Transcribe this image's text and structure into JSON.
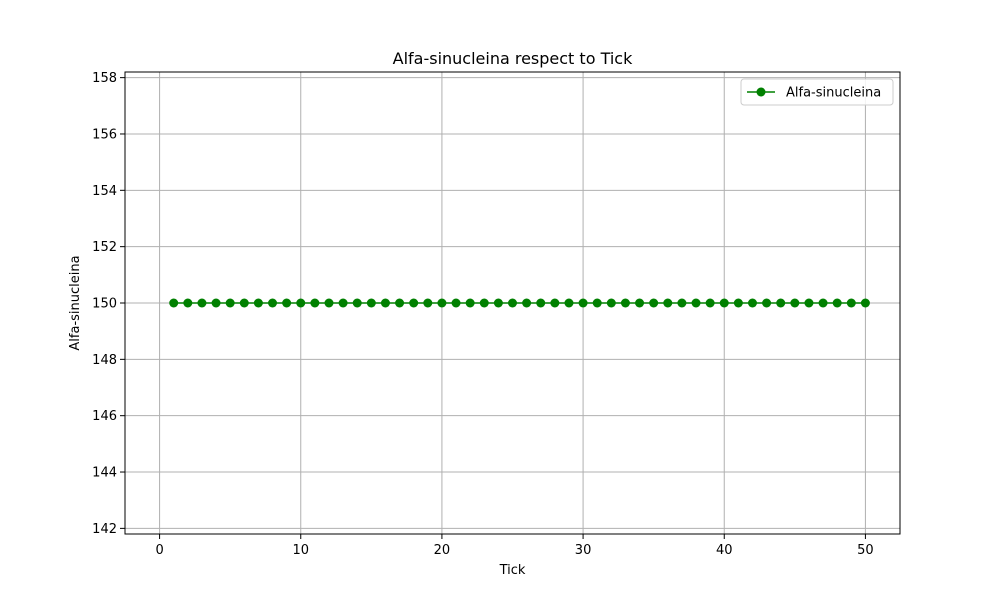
{
  "chart_data": {
    "type": "line",
    "title": "Alfa-sinucleina respect to Tick",
    "xlabel": "Tick",
    "ylabel": "Alfa-sinucleina",
    "xlim": [
      -2.45,
      52.45
    ],
    "ylim": [
      141.8,
      158.2
    ],
    "xticks": [
      0,
      10,
      20,
      30,
      40,
      50
    ],
    "yticks": [
      142,
      144,
      146,
      148,
      150,
      152,
      154,
      156,
      158
    ],
    "grid": true,
    "legend_position": "top-right",
    "series": [
      {
        "name": "Alfa-sinucleina",
        "color": "#008000",
        "marker": "circle",
        "x": [
          1,
          2,
          3,
          4,
          5,
          6,
          7,
          8,
          9,
          10,
          11,
          12,
          13,
          14,
          15,
          16,
          17,
          18,
          19,
          20,
          21,
          22,
          23,
          24,
          25,
          26,
          27,
          28,
          29,
          30,
          31,
          32,
          33,
          34,
          35,
          36,
          37,
          38,
          39,
          40,
          41,
          42,
          43,
          44,
          45,
          46,
          47,
          48,
          49,
          50
        ],
        "y": [
          150,
          150,
          150,
          150,
          150,
          150,
          150,
          150,
          150,
          150,
          150,
          150,
          150,
          150,
          150,
          150,
          150,
          150,
          150,
          150,
          150,
          150,
          150,
          150,
          150,
          150,
          150,
          150,
          150,
          150,
          150,
          150,
          150,
          150,
          150,
          150,
          150,
          150,
          150,
          150,
          150,
          150,
          150,
          150,
          150,
          150,
          150,
          150,
          150,
          150
        ]
      }
    ]
  }
}
